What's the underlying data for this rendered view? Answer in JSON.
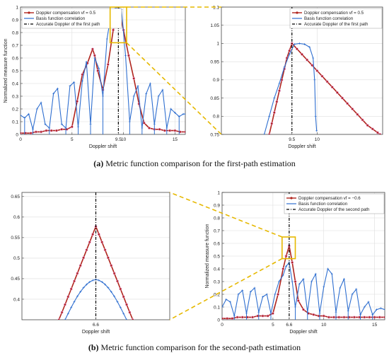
{
  "captions": {
    "a_letter": "(a)",
    "a_text": " Metric function comparison for the first-path estimation",
    "b_letter": "(b)",
    "b_text": " Metric function comparison for the second-path estimation"
  },
  "colors": {
    "doppler": "#b0241d",
    "doppler_marker_edge": "#e8a0d8",
    "basis": "#2f6fd0",
    "accurate": "#000000",
    "zoom_box": "#e6b800",
    "grid": "#dddddd"
  },
  "chart_data": [
    {
      "id": "a-left",
      "type": "line",
      "xlabel": "Doppler shift",
      "ylabel": "Normalized measure function",
      "xlim": [
        0,
        16
      ],
      "ylim": [
        0,
        1
      ],
      "xticks": [
        0,
        5,
        9.5,
        10,
        15
      ],
      "xtick_labels": [
        "0",
        "5",
        "9.5",
        "10",
        "15"
      ],
      "yticks": [
        0,
        0.1,
        0.2,
        0.3,
        0.4,
        0.5,
        0.6,
        0.7,
        0.8,
        0.9,
        1
      ],
      "ytick_labels": [
        "0",
        "0.1",
        "0.2",
        "0.3",
        "0.4",
        "0.5",
        "0.6",
        "0.7",
        "0.8",
        "0.9",
        "1"
      ],
      "grid": true,
      "legend_position": "top-left",
      "vline_x": 9.5,
      "series": [
        {
          "name": "Doppler compensation vf = 0.5",
          "role": "doppler",
          "x": [
            0,
            0.5,
            1,
            1.5,
            2,
            2.5,
            3,
            3.5,
            4,
            4.5,
            5,
            5.5,
            6,
            6.5,
            7,
            7.2,
            7.5,
            8,
            8.5,
            9,
            9.5,
            10,
            10.5,
            11,
            11.5,
            12,
            12.5,
            13,
            13.5,
            14,
            14.5,
            15,
            15.5,
            16
          ],
          "y": [
            0.01,
            0.01,
            0.01,
            0.02,
            0.02,
            0.03,
            0.03,
            0.03,
            0.04,
            0.04,
            0.06,
            0.26,
            0.47,
            0.56,
            0.67,
            0.62,
            0.5,
            0.35,
            0.55,
            0.82,
            1.0,
            0.82,
            0.62,
            0.44,
            0.24,
            0.09,
            0.05,
            0.04,
            0.04,
            0.03,
            0.03,
            0.03,
            0.02,
            0.02
          ]
        },
        {
          "name": "Basis function correlation",
          "role": "basis",
          "x": [
            0,
            0.4,
            0.8,
            1.2,
            1.6,
            2.0,
            2.4,
            2.8,
            3.2,
            3.6,
            4.0,
            4.4,
            4.8,
            5.2,
            5.6,
            6.0,
            6.4,
            6.8,
            7.2,
            7.6,
            8.0,
            8.4,
            8.8,
            9.2,
            9.5,
            9.8,
            10.2,
            10.6,
            11.0,
            11.4,
            11.8,
            12.2,
            12.6,
            13.0,
            13.4,
            13.8,
            14.2,
            14.6,
            15.0,
            15.4,
            15.8,
            16
          ],
          "y": [
            0.15,
            0.13,
            0.16,
            0.04,
            0.2,
            0.25,
            0.08,
            0.05,
            0.32,
            0.36,
            0.08,
            0.05,
            0.38,
            0.41,
            0.06,
            0.42,
            0.57,
            0.08,
            0.6,
            0.52,
            0.3,
            0.75,
            0.95,
            0.99,
            1.0,
            0.98,
            0.62,
            0.1,
            0.3,
            0.38,
            0.05,
            0.32,
            0.4,
            0.08,
            0.3,
            0.35,
            0.05,
            0.2,
            0.17,
            0.14,
            0.16,
            0.16
          ]
        }
      ]
    },
    {
      "id": "a-right",
      "type": "line",
      "xlabel": "Doppler shift",
      "ylabel": "",
      "xlim": [
        8.1,
        11.3
      ],
      "ylim": [
        0.75,
        1.1
      ],
      "xticks": [
        9.5,
        10
      ],
      "xtick_labels": [
        "9.5",
        "10"
      ],
      "yticks": [
        0.75,
        0.8,
        0.85,
        0.9,
        0.95,
        1,
        1.05,
        1.1
      ],
      "ytick_labels": [
        "0.75",
        "0.8",
        "0.85",
        "0.9",
        "0.95",
        "1",
        "1.05",
        "1.1"
      ],
      "grid": true,
      "legend_position": "top-right",
      "vline_x": 9.5,
      "series": [
        {
          "name": "Doppler compensation vf = 0.5",
          "role": "doppler",
          "x": [
            9.05,
            9.1,
            9.15,
            9.2,
            9.25,
            9.3,
            9.35,
            9.4,
            9.45,
            9.5,
            9.6,
            9.7,
            9.8,
            9.9,
            10.0,
            10.1,
            10.2,
            10.3,
            10.4,
            10.5,
            10.6,
            10.7,
            10.8,
            10.9,
            11.0,
            11.1,
            11.2,
            11.25
          ],
          "y": [
            0.75,
            0.78,
            0.81,
            0.84,
            0.87,
            0.9,
            0.93,
            0.96,
            0.98,
            1.0,
            0.985,
            0.97,
            0.955,
            0.94,
            0.925,
            0.91,
            0.895,
            0.88,
            0.865,
            0.85,
            0.835,
            0.82,
            0.805,
            0.79,
            0.775,
            0.765,
            0.755,
            0.75
          ]
        },
        {
          "name": "Basis function correlation",
          "role": "basis",
          "x": [
            8.95,
            9.05,
            9.15,
            9.25,
            9.35,
            9.45,
            9.55,
            9.65,
            9.75,
            9.85,
            9.92,
            9.95,
            9.97,
            9.99
          ],
          "y": [
            0.75,
            0.8,
            0.85,
            0.89,
            0.935,
            0.97,
            0.998,
            1.0,
            0.998,
            0.99,
            0.96,
            0.9,
            0.8,
            0.76
          ]
        }
      ]
    },
    {
      "id": "b-left",
      "type": "line",
      "xlabel": "Doppler shift",
      "ylabel": "",
      "xlim": [
        5.4,
        7.8
      ],
      "ylim": [
        0.35,
        0.66
      ],
      "xticks": [
        6.6
      ],
      "xtick_labels": [
        "6.6"
      ],
      "yticks": [
        0.4,
        0.45,
        0.5,
        0.55,
        0.6,
        0.65
      ],
      "ytick_labels": [
        "0.4",
        "0.45",
        "0.5",
        "0.55",
        "0.6",
        "0.65"
      ],
      "grid": true,
      "vline_x": 6.6,
      "series": [
        {
          "name": "Doppler compensation vf = -0.6",
          "role": "doppler",
          "x": [
            6.0,
            6.05,
            6.1,
            6.15,
            6.2,
            6.25,
            6.3,
            6.35,
            6.4,
            6.45,
            6.5,
            6.55,
            6.6,
            6.65,
            6.7,
            6.75,
            6.8,
            6.85,
            6.9,
            6.95,
            7.0,
            7.05,
            7.1,
            7.15,
            7.2
          ],
          "y": [
            0.35,
            0.368,
            0.387,
            0.406,
            0.425,
            0.444,
            0.463,
            0.482,
            0.501,
            0.52,
            0.539,
            0.558,
            0.577,
            0.558,
            0.539,
            0.52,
            0.501,
            0.482,
            0.463,
            0.444,
            0.425,
            0.406,
            0.387,
            0.368,
            0.35
          ]
        },
        {
          "name": "Basis function correlation",
          "role": "basis",
          "x": [
            6.1,
            6.15,
            6.2,
            6.25,
            6.3,
            6.35,
            6.4,
            6.45,
            6.5,
            6.55,
            6.6,
            6.65,
            6.7,
            6.75,
            6.8,
            6.85,
            6.9,
            6.95,
            7.0,
            7.05,
            7.1
          ],
          "y": [
            0.35,
            0.365,
            0.38,
            0.394,
            0.407,
            0.418,
            0.428,
            0.436,
            0.442,
            0.446,
            0.448,
            0.446,
            0.442,
            0.436,
            0.428,
            0.418,
            0.407,
            0.394,
            0.38,
            0.365,
            0.35
          ]
        }
      ]
    },
    {
      "id": "b-right",
      "type": "line",
      "xlabel": "Doppler shift",
      "ylabel": "Normalized measure function",
      "xlim": [
        0,
        16
      ],
      "ylim": [
        0,
        1
      ],
      "xticks": [
        0,
        5,
        6.6,
        10,
        15
      ],
      "xtick_labels": [
        "0",
        "5",
        "6.6",
        "10",
        "15"
      ],
      "yticks": [
        0,
        0.1,
        0.2,
        0.3,
        0.4,
        0.5,
        0.6,
        0.7,
        0.8,
        0.9,
        1
      ],
      "ytick_labels": [
        "0",
        "0.1",
        "0.2",
        "0.3",
        "0.4",
        "0.5",
        "0.6",
        "0.7",
        "0.8",
        "0.9",
        "1"
      ],
      "grid": true,
      "legend_position": "top-right",
      "vline_x": 6.6,
      "series": [
        {
          "name": "Doppler compensation vf = -0.6",
          "role": "doppler",
          "x": [
            0,
            0.5,
            1,
            1.5,
            2,
            2.5,
            3,
            3.5,
            4,
            4.5,
            5,
            5.5,
            6,
            6.3,
            6.6,
            6.9,
            7.2,
            7.5,
            8,
            8.5,
            9,
            9.5,
            10,
            10.5,
            11,
            11.5,
            12,
            12.5,
            13,
            13.5,
            14,
            14.5,
            15,
            15.5,
            16
          ],
          "y": [
            0.01,
            0.01,
            0.01,
            0.02,
            0.02,
            0.02,
            0.02,
            0.03,
            0.03,
            0.03,
            0.05,
            0.2,
            0.4,
            0.5,
            0.58,
            0.45,
            0.3,
            0.15,
            0.08,
            0.05,
            0.04,
            0.03,
            0.03,
            0.02,
            0.02,
            0.02,
            0.02,
            0.02,
            0.02,
            0.02,
            0.02,
            0.02,
            0.02,
            0.02,
            0.02
          ]
        },
        {
          "name": "Basis function correlation",
          "role": "basis",
          "x": [
            0,
            0.4,
            0.8,
            1.2,
            1.6,
            2.0,
            2.4,
            2.8,
            3.2,
            3.6,
            4.0,
            4.4,
            4.8,
            5.2,
            5.6,
            6.0,
            6.3,
            6.6,
            6.9,
            7.2,
            7.6,
            8.0,
            8.4,
            8.8,
            9.2,
            9.6,
            10.0,
            10.4,
            10.8,
            11.2,
            11.6,
            12.0,
            12.4,
            12.8,
            13.2,
            13.6,
            14.0,
            14.4,
            14.8,
            15.2,
            15.6,
            16
          ],
          "y": [
            0.1,
            0.16,
            0.14,
            0.03,
            0.2,
            0.23,
            0.05,
            0.22,
            0.25,
            0.06,
            0.18,
            0.2,
            0.05,
            0.2,
            0.3,
            0.35,
            0.42,
            0.45,
            0.3,
            0.1,
            0.28,
            0.32,
            0.06,
            0.3,
            0.36,
            0.05,
            0.26,
            0.4,
            0.36,
            0.06,
            0.25,
            0.32,
            0.07,
            0.2,
            0.24,
            0.04,
            0.1,
            0.14,
            0.04,
            0.08,
            0.09,
            0.08
          ]
        }
      ]
    }
  ],
  "legends": {
    "a-left": [
      "Doppler compensation vf = 0.5",
      "Basis function correlation",
      "Accurate Doppler of the first path"
    ],
    "a-right": [
      "Doppler compensation vf = 0.5",
      "Basis function correlation",
      "Accurate Doppler of the first path"
    ],
    "b-right": [
      "Doppler compensation vf = −0.6",
      "Basis function correlation",
      "Accurate Doppler of the second path"
    ]
  }
}
